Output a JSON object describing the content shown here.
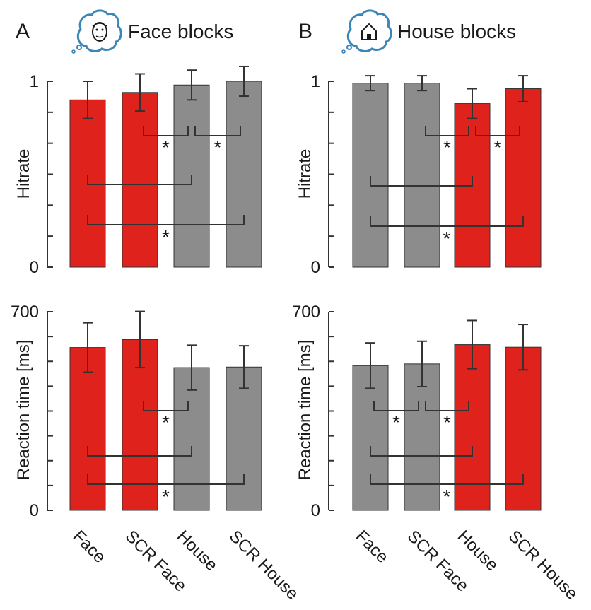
{
  "panels": [
    {
      "letter": "A",
      "title": "Face blocks",
      "icon": "face-thought-bubble-icon"
    },
    {
      "letter": "B",
      "title": "House blocks",
      "icon": "house-thought-bubble-icon"
    }
  ],
  "colors": {
    "red": "#e0221c",
    "gray": "#8c8c8c",
    "axis": "#333333",
    "icon": "#3a86b8"
  },
  "chart_data": [
    {
      "type": "bar",
      "block": "Face blocks",
      "ylabel": "Hitrate",
      "ylim": [
        0,
        1
      ],
      "tick_labels": [
        "0",
        "1"
      ],
      "categories": [
        "Face",
        "SCR Face",
        "House",
        "SCR House"
      ],
      "values": [
        0.9,
        0.94,
        0.98,
        1.0
      ],
      "errors": [
        0.1,
        0.1,
        0.08,
        0.08
      ],
      "colors": [
        "red",
        "red",
        "gray",
        "gray"
      ],
      "comparisons": [
        {
          "from": 1,
          "to": 2,
          "significant": true
        },
        {
          "from": 2,
          "to": 3,
          "significant": true
        },
        {
          "from": 0,
          "to": 2,
          "significant": false
        },
        {
          "from": 0,
          "to": 3,
          "significant": true
        }
      ]
    },
    {
      "type": "bar",
      "block": "House blocks",
      "ylabel": "Hitrate",
      "ylim": [
        0,
        1
      ],
      "tick_labels": [
        "0",
        "1"
      ],
      "categories": [
        "Face",
        "SCR Face",
        "House",
        "SCR House"
      ],
      "values": [
        0.99,
        0.99,
        0.88,
        0.96
      ],
      "errors": [
        0.04,
        0.04,
        0.08,
        0.07
      ],
      "colors": [
        "gray",
        "gray",
        "red",
        "red"
      ],
      "comparisons": [
        {
          "from": 1,
          "to": 2,
          "significant": true
        },
        {
          "from": 2,
          "to": 3,
          "significant": true
        },
        {
          "from": 0,
          "to": 2,
          "significant": false
        },
        {
          "from": 0,
          "to": 3,
          "significant": true
        }
      ]
    },
    {
      "type": "bar",
      "block": "Face blocks",
      "ylabel": "Reaction time [ms]",
      "ylim": [
        0,
        700
      ],
      "tick_labels": [
        "0",
        "700"
      ],
      "categories": [
        "Face",
        "SCR Face",
        "House",
        "SCR House"
      ],
      "values": [
        574,
        602,
        503,
        505
      ],
      "errors": [
        87,
        99,
        79,
        75
      ],
      "colors": [
        "red",
        "red",
        "gray",
        "gray"
      ],
      "comparisons": [
        {
          "from": 1,
          "to": 2,
          "significant": true
        },
        {
          "from": 0,
          "to": 2,
          "significant": false
        },
        {
          "from": 0,
          "to": 3,
          "significant": true
        }
      ]
    },
    {
      "type": "bar",
      "block": "House blocks",
      "ylabel": "Reaction time [ms]",
      "ylim": [
        0,
        700
      ],
      "tick_labels": [
        "0",
        "700"
      ],
      "categories": [
        "Face",
        "SCR Face",
        "House",
        "SCR House"
      ],
      "values": [
        510,
        516,
        584,
        575
      ],
      "errors": [
        80,
        80,
        85,
        80
      ],
      "colors": [
        "gray",
        "gray",
        "red",
        "red"
      ],
      "comparisons": [
        {
          "from": 0,
          "to": 1,
          "significant": true
        },
        {
          "from": 1,
          "to": 2,
          "significant": true
        },
        {
          "from": 0,
          "to": 2,
          "significant": false
        },
        {
          "from": 0,
          "to": 3,
          "significant": true
        }
      ]
    }
  ]
}
